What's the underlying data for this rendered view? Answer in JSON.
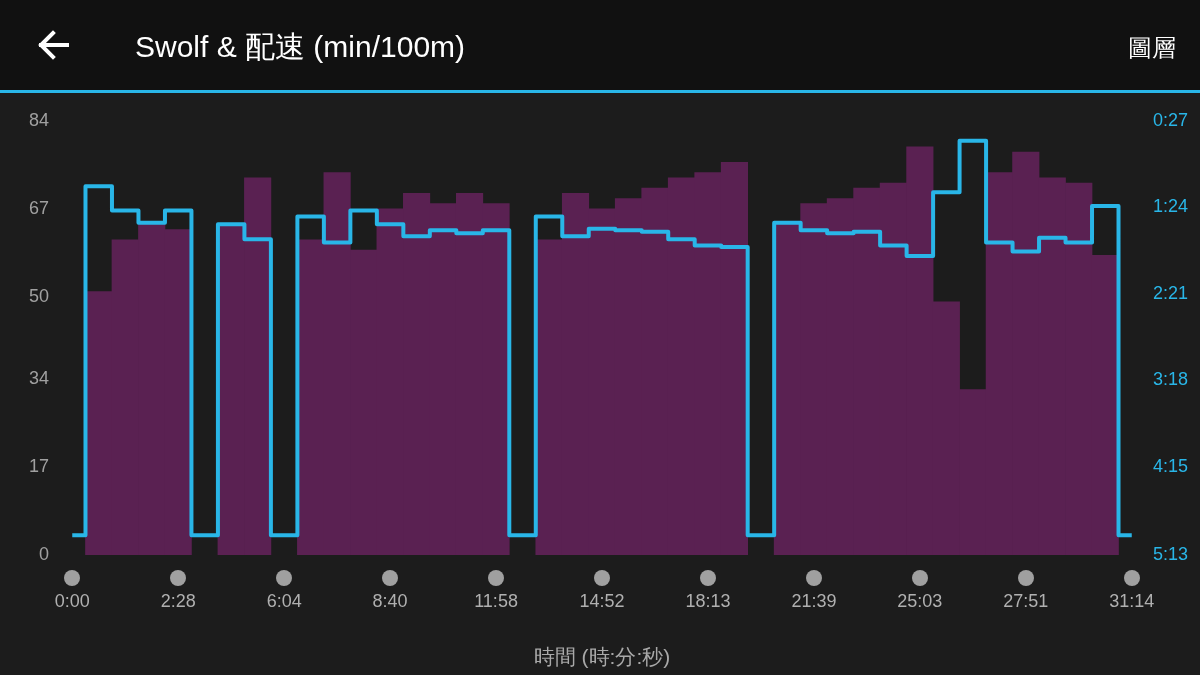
{
  "chart_data": {
    "type": "bar",
    "title": "Swolf & 配速 (min/100m)",
    "xlabel": "時間 (時:分:秒)",
    "annotations": [
      "圖層"
    ],
    "categories": [
      "0:00",
      null,
      null,
      null,
      "2:28",
      null,
      null,
      null,
      "6:04",
      null,
      null,
      null,
      "8:40",
      null,
      null,
      null,
      "11:58",
      null,
      null,
      null,
      "14:52",
      null,
      null,
      null,
      "18:13",
      null,
      null,
      null,
      "21:39",
      null,
      null,
      null,
      "25:03",
      null,
      null,
      null,
      "27:51",
      null,
      null,
      null,
      "31:14"
    ],
    "ylim": [
      0,
      84
    ],
    "yticks": [
      0,
      17,
      34,
      50,
      67,
      84
    ],
    "y2lim": [
      313,
      27
    ],
    "y2ticks": [
      {
        "value": 27,
        "label": "0:27"
      },
      {
        "value": 84,
        "label": "1:24"
      },
      {
        "value": 141,
        "label": "2:21"
      },
      {
        "value": 198,
        "label": "3:18"
      },
      {
        "value": 255,
        "label": "4:15"
      },
      {
        "value": 313,
        "label": "5:13"
      }
    ],
    "grid": false,
    "legend": false,
    "series": [
      {
        "color": "#5a2152",
        "values": [
          null,
          51,
          61,
          64,
          63,
          null,
          64,
          73,
          null,
          61,
          74,
          59,
          67,
          70,
          68,
          70,
          68,
          null,
          61,
          70,
          67,
          69,
          71,
          73,
          74,
          76,
          null,
          64,
          68,
          69,
          71,
          72,
          79,
          49,
          32,
          74,
          78,
          73,
          72,
          58,
          null
        ]
      },
      {
        "type": "step",
        "axis": "y2",
        "color": "#29b6e8",
        "values": [
          300,
          70,
          86,
          94,
          86,
          300,
          95,
          105,
          300,
          90,
          107,
          86,
          95,
          103,
          99,
          101,
          99,
          300,
          90,
          103,
          98,
          99,
          100,
          105,
          109,
          110,
          300,
          94,
          99,
          101,
          100,
          109,
          116,
          74,
          40,
          107,
          113,
          104,
          107,
          83,
          300
        ]
      }
    ]
  }
}
